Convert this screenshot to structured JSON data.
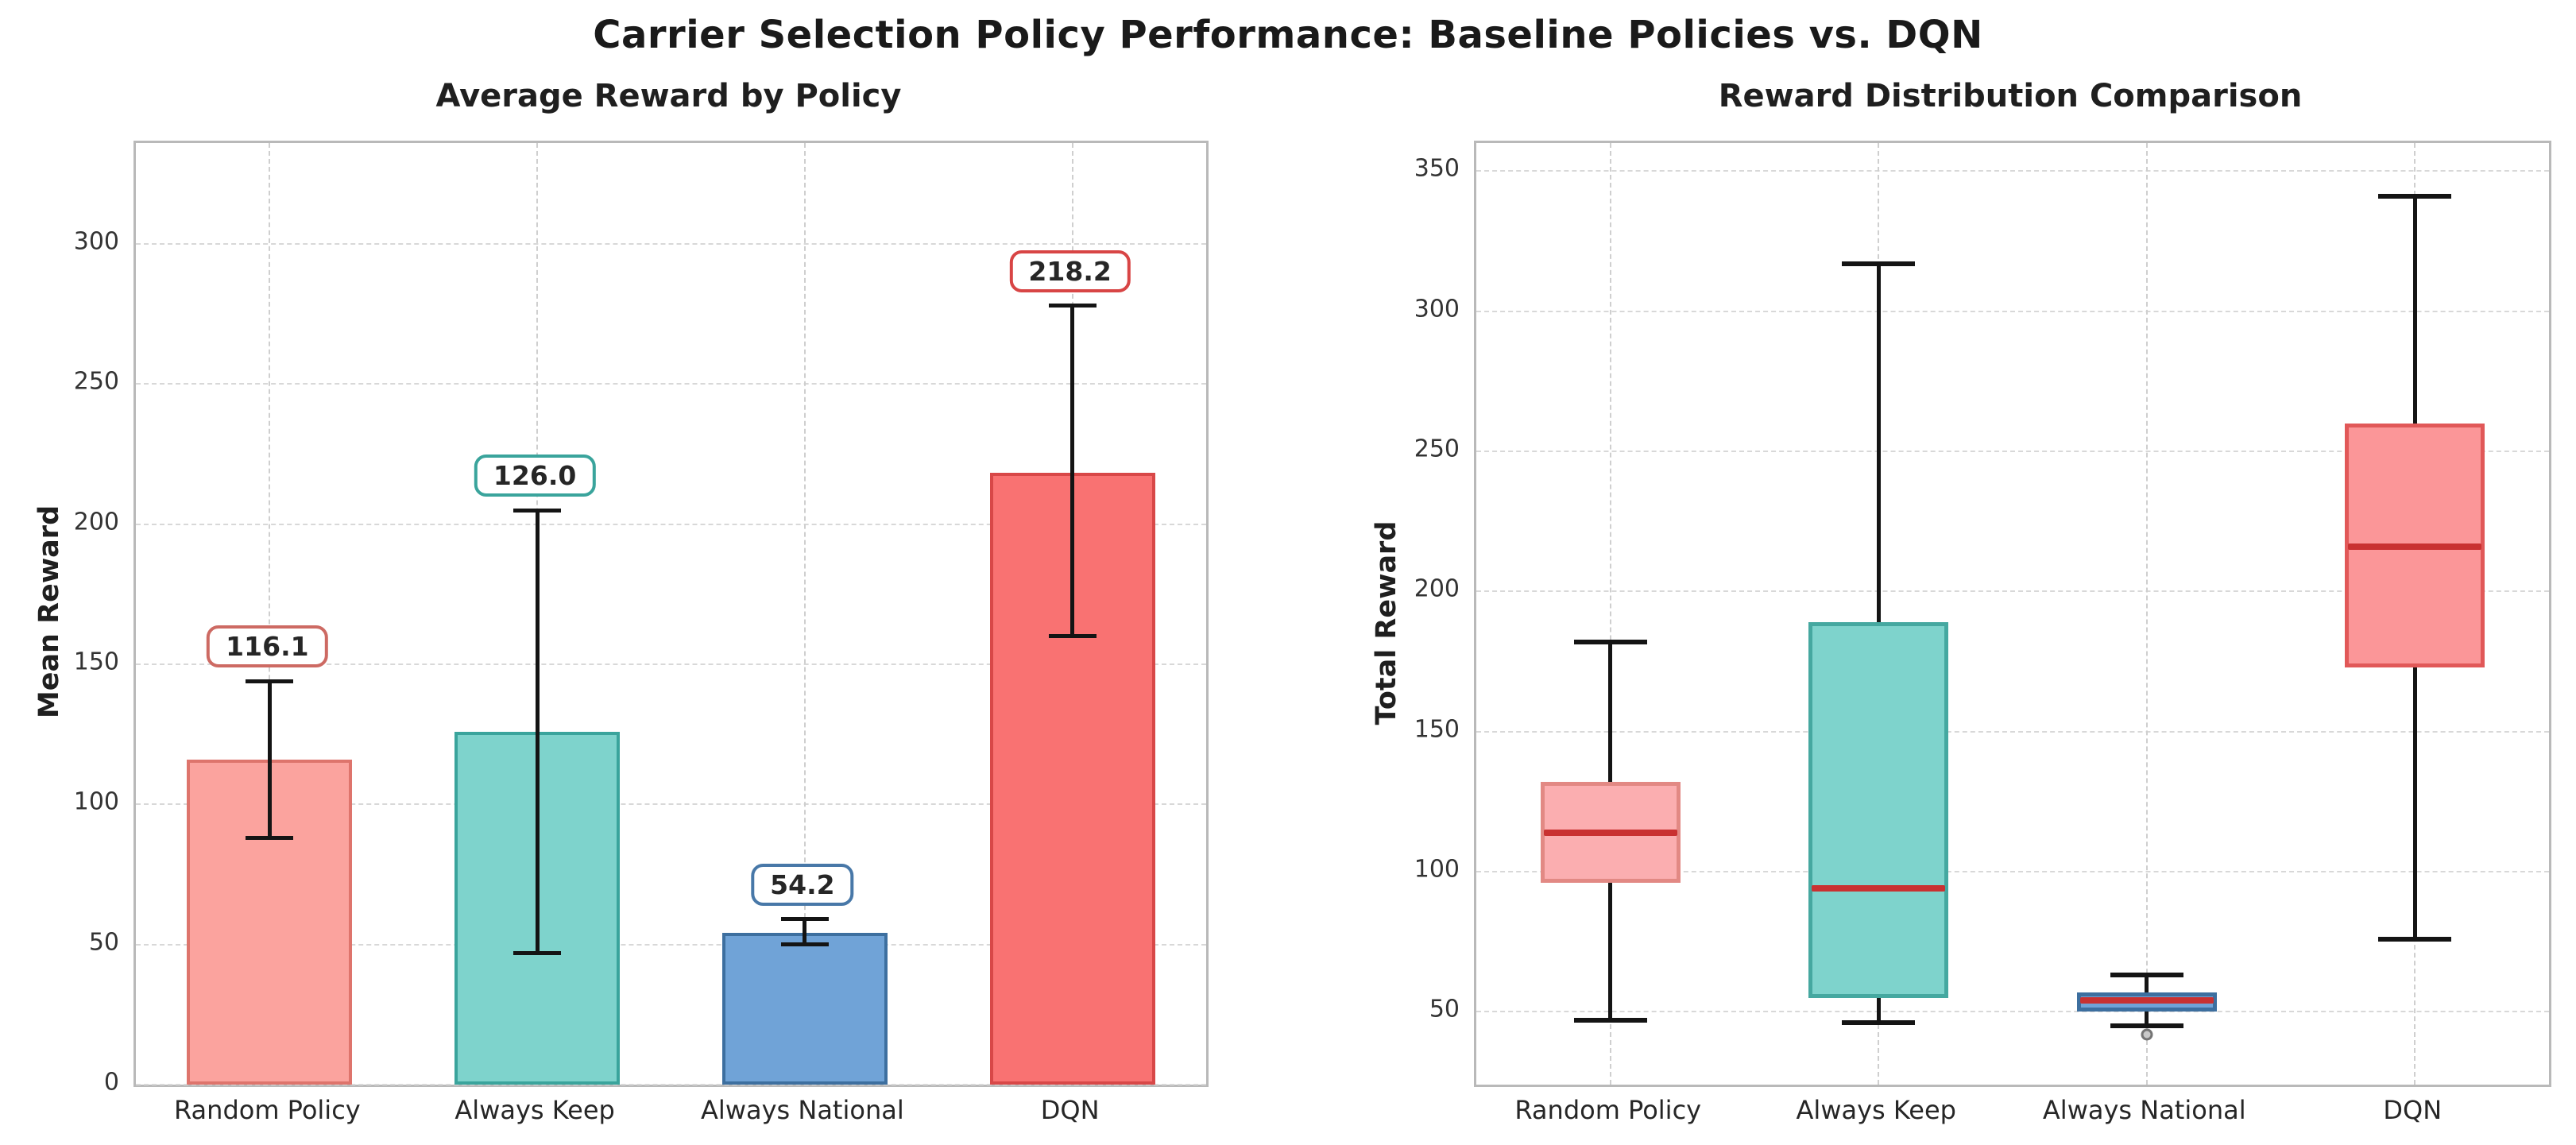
{
  "suptitle": "Carrier Selection Policy Performance: Baseline Policies vs. DQN",
  "colors": {
    "background": "#ffffff",
    "grid": "#d8d8d8",
    "spine": "#b9b9b9",
    "whisker": "#141414",
    "text": "#262626"
  },
  "chart_data": [
    {
      "type": "bar",
      "title": "Average Reward by Policy",
      "ylabel": "Mean Reward",
      "categories": [
        "Random Policy",
        "Always Keep",
        "Always National",
        "DQN"
      ],
      "values": [
        116.1,
        126.0,
        54.2,
        218.2
      ],
      "value_labels": [
        "116.1",
        "126.0",
        "54.2",
        "218.2"
      ],
      "error_low": [
        88,
        47,
        50,
        160
      ],
      "error_high": [
        144,
        205,
        59,
        278
      ],
      "ylim": [
        0,
        336
      ],
      "yticks": [
        0,
        50,
        100,
        150,
        200,
        250,
        300
      ],
      "grid": true,
      "legend": "none",
      "bar_fill": [
        "#fba39e",
        "#7ed3cc",
        "#70a3d7",
        "#f97272"
      ],
      "bar_edge": [
        "#de746c",
        "#3aa49c",
        "#3d6f9f",
        "#d84848"
      ],
      "annotation_border": [
        "#cd6a63",
        "#3aa49c",
        "#4878a8",
        "#d84545"
      ]
    },
    {
      "type": "box",
      "title": "Reward Distribution Comparison",
      "ylabel": "Total Reward",
      "categories": [
        "Random Policy",
        "Always Keep",
        "Always National",
        "DQN"
      ],
      "series": [
        {
          "name": "Random Policy",
          "whisker_low": 47,
          "q1": 96,
          "median": 114,
          "q3": 132,
          "whisker_high": 182,
          "outliers": []
        },
        {
          "name": "Always Keep",
          "whisker_low": 46,
          "q1": 55,
          "median": 94,
          "q3": 189,
          "whisker_high": 317,
          "outliers": []
        },
        {
          "name": "Always National",
          "whisker_low": 45,
          "q1": 50,
          "median": 54,
          "q3": 57,
          "whisker_high": 63,
          "outliers": [
            42
          ]
        },
        {
          "name": "DQN",
          "whisker_low": 76,
          "q1": 173,
          "median": 216,
          "q3": 260,
          "whisker_high": 341,
          "outliers": []
        }
      ],
      "ylim": [
        24,
        360
      ],
      "yticks": [
        50,
        100,
        150,
        200,
        250,
        300,
        350
      ],
      "grid": true,
      "legend": "none",
      "box_fill": [
        "#fbaeb0",
        "#7ed3cc",
        "#70a3d7",
        "#fb9698"
      ],
      "box_edge": [
        "#e28984",
        "#45a8a0",
        "#3d6f9f",
        "#e15858"
      ],
      "median_color": "#c93131"
    }
  ]
}
